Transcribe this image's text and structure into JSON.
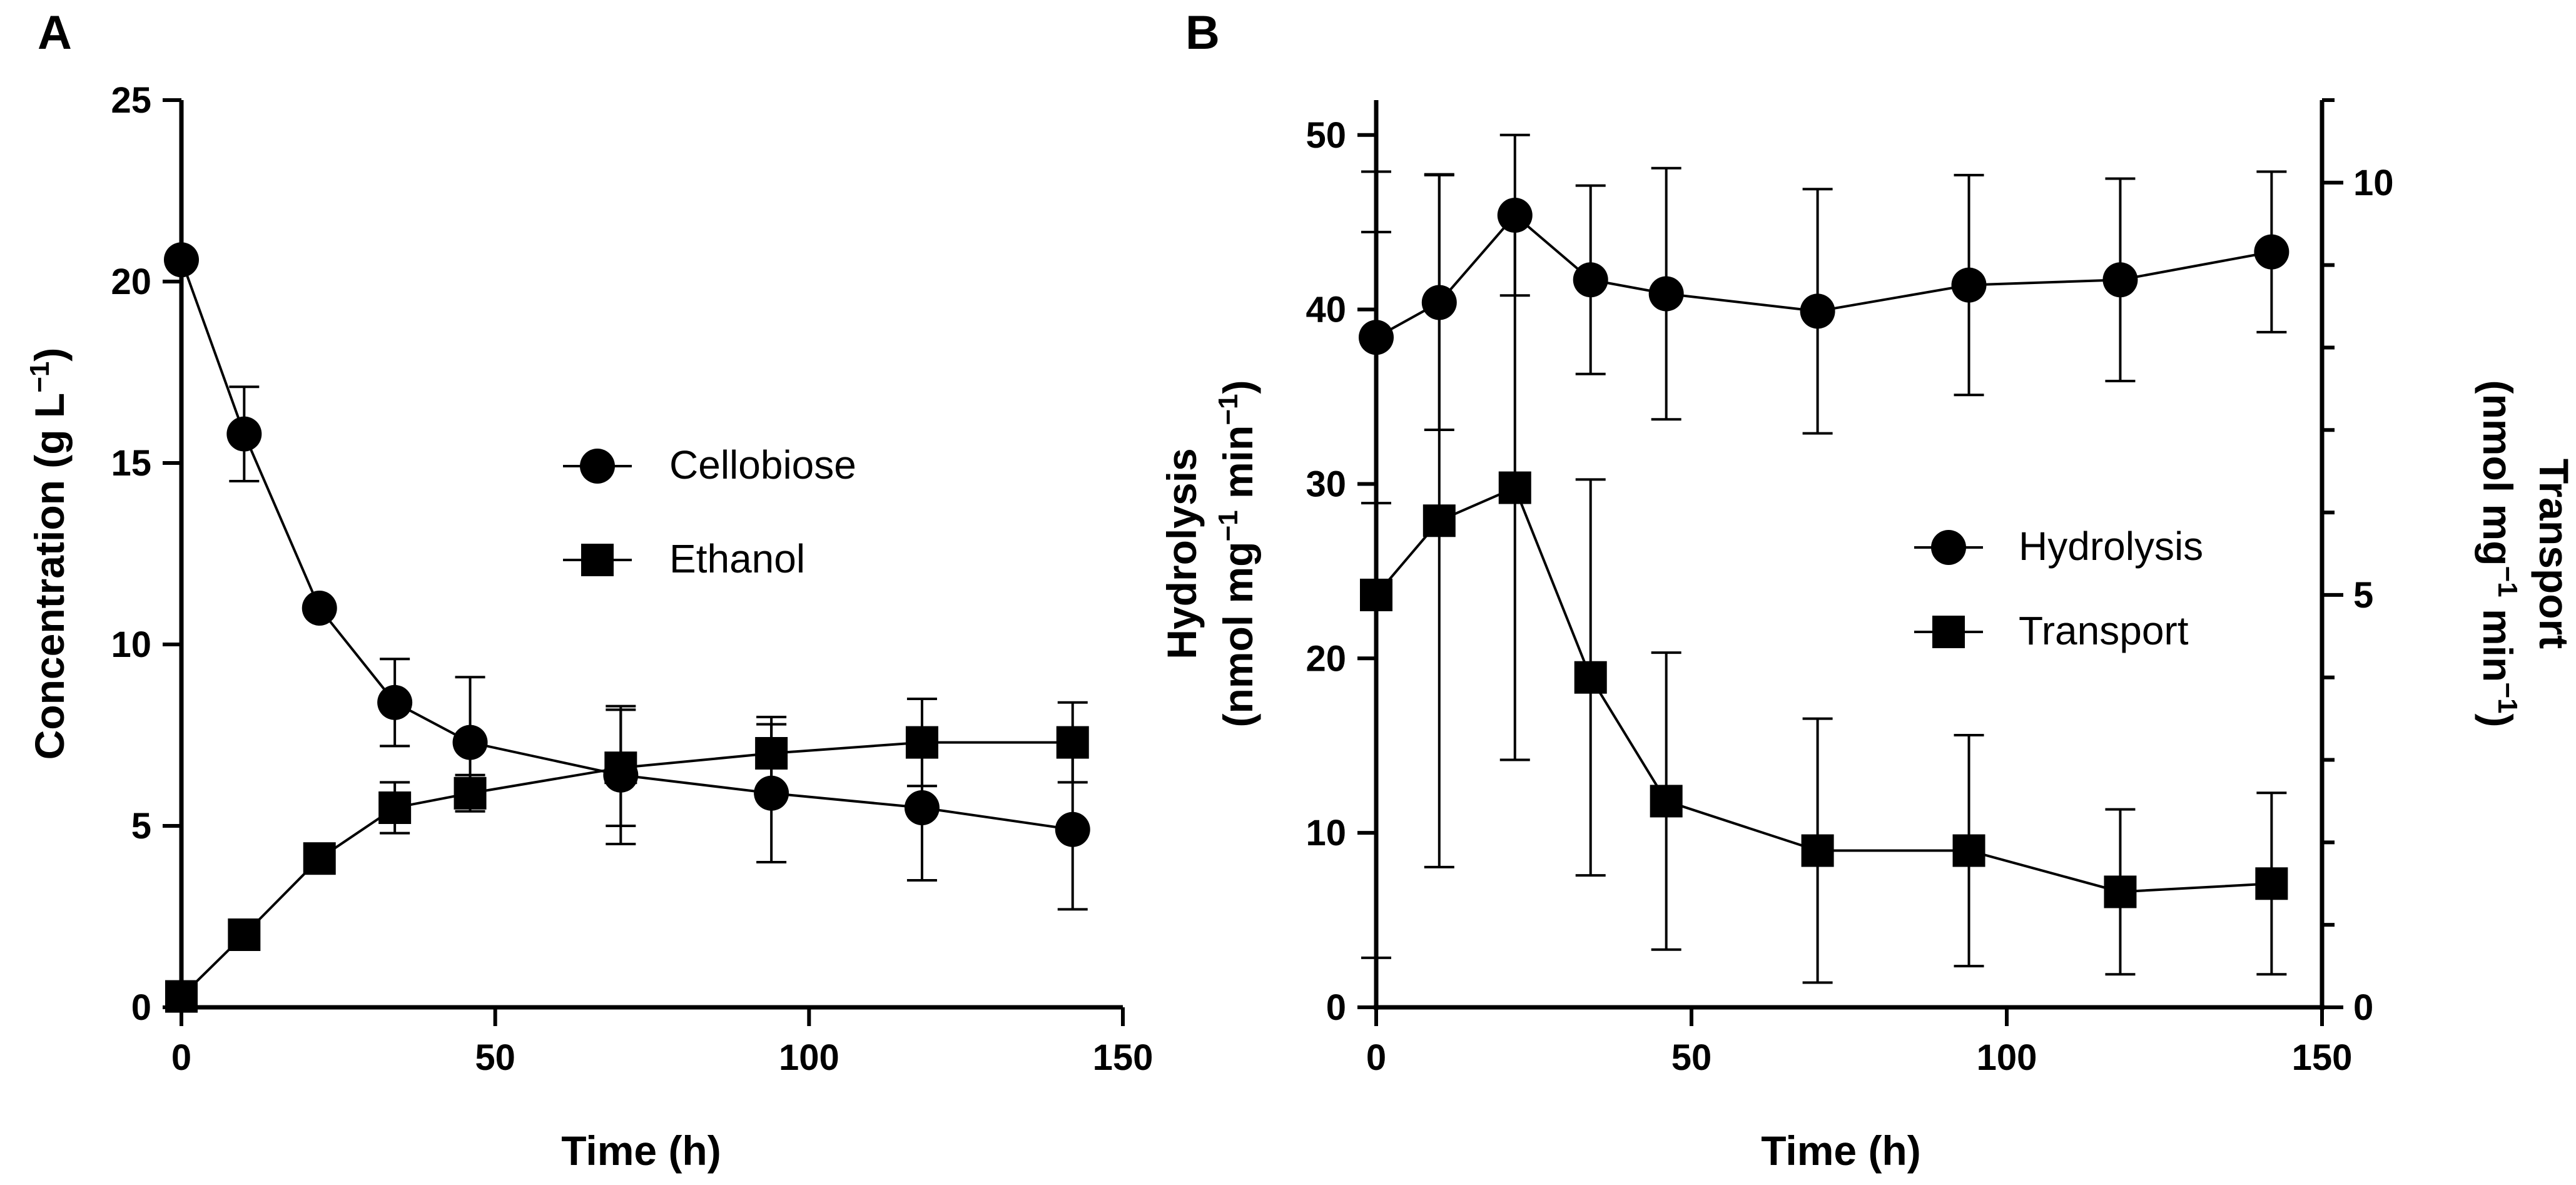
{
  "chart_data": [
    {
      "panel": "A",
      "type": "line",
      "xlabel": "Time (h)",
      "ylabel_main": "Concentration (g L",
      "ylabel_sup": "−1",
      "ylabel_close": ")",
      "xlim": [
        0,
        150
      ],
      "ylim": [
        0,
        25
      ],
      "xticks": [
        0,
        50,
        100,
        150
      ],
      "yticks": [
        0,
        5,
        10,
        15,
        20,
        25
      ],
      "x": [
        0,
        10,
        22,
        34,
        46,
        70,
        94,
        118,
        142
      ],
      "series": [
        {
          "name": "Cellobiose",
          "marker": "circle",
          "values": [
            20.6,
            15.8,
            11.0,
            8.4,
            7.3,
            6.4,
            5.9,
            5.5,
            4.9
          ],
          "errors": [
            0.0,
            1.3,
            0.0,
            1.2,
            1.8,
            1.9,
            1.9,
            2.0,
            2.2
          ]
        },
        {
          "name": "Ethanol",
          "marker": "square",
          "values": [
            0.3,
            2.0,
            4.1,
            5.5,
            5.9,
            6.6,
            7.0,
            7.3,
            7.3
          ],
          "errors": [
            0.0,
            0.0,
            0.0,
            0.7,
            0.5,
            1.6,
            1.0,
            1.2,
            1.1
          ]
        }
      ]
    },
    {
      "panel": "B",
      "type": "line",
      "xlabel": "Time (h)",
      "ylabel_left": {
        "line1": "Hydrolysis",
        "line2_pre": "(nmol mg",
        "sup1": "−1",
        "mid": " min",
        "sup2": "−1",
        "close": ")"
      },
      "ylabel_right": {
        "line1": "Transport",
        "line2_pre": "(nmol mg",
        "sup1": "−1",
        "mid": " min",
        "sup2": "−1",
        "close": ")"
      },
      "xlim": [
        0,
        150
      ],
      "ylim_left": [
        0,
        52
      ],
      "ylim_right": [
        0,
        11
      ],
      "xticks": [
        0,
        50,
        100,
        150
      ],
      "yticks_left": [
        0,
        10,
        20,
        30,
        40,
        50
      ],
      "yticks_right": [
        0,
        5,
        10
      ],
      "x": [
        0,
        10,
        22,
        34,
        46,
        70,
        94,
        118,
        142
      ],
      "series": [
        {
          "name": "Hydrolysis",
          "axis": "left",
          "marker": "circle",
          "values": [
            38.4,
            40.4,
            45.4,
            41.7,
            40.9,
            39.9,
            41.4,
            41.7,
            43.3
          ],
          "errors": [
            9.5,
            7.3,
            4.6,
            5.4,
            7.2,
            7.0,
            6.3,
            5.8,
            4.6
          ]
        },
        {
          "name": "Transport",
          "axis": "right",
          "marker": "square",
          "values": [
            5.0,
            5.9,
            6.3,
            4.0,
            2.5,
            1.9,
            1.9,
            1.4,
            1.5
          ],
          "errors": [
            4.4,
            4.2,
            3.3,
            2.4,
            1.8,
            1.6,
            1.4,
            1.0,
            1.1
          ]
        }
      ]
    }
  ]
}
